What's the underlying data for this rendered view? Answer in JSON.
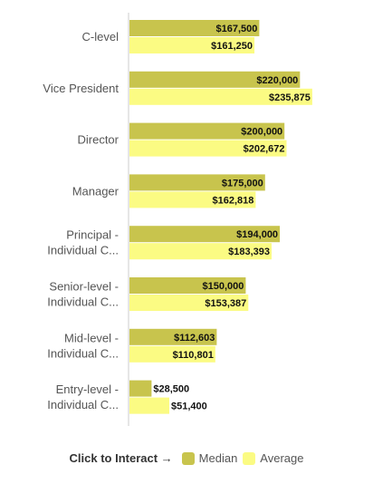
{
  "chart_data": {
    "type": "bar",
    "orientation": "horizontal",
    "title": "",
    "xlabel": "",
    "ylabel": "",
    "xlim": [
      0,
      250000
    ],
    "grid": false,
    "legend_placement": "bottom-center",
    "categories": [
      [
        "C-level"
      ],
      [
        "Vice President"
      ],
      [
        "Director"
      ],
      [
        "Manager"
      ],
      [
        "Principal -",
        "Individual C..."
      ],
      [
        "Senior-level -",
        "Individual C..."
      ],
      [
        "Mid-level -",
        "Individual C..."
      ],
      [
        "Entry-level -",
        "Individual C..."
      ]
    ],
    "series": [
      {
        "name": "Median",
        "color": "#c8c44d",
        "values": [
          167500,
          220000,
          200000,
          175000,
          194000,
          150000,
          112603,
          28500
        ],
        "labels": [
          "$167,500",
          "$220,000",
          "$200,000",
          "$175,000",
          "$194,000",
          "$150,000",
          "$112,603",
          "$28,500"
        ]
      },
      {
        "name": "Average",
        "color": "#fbfb83",
        "values": [
          161250,
          235875,
          202672,
          162818,
          183393,
          153387,
          110801,
          51400
        ],
        "labels": [
          "$161,250",
          "$235,875",
          "$202,672",
          "$162,818",
          "$183,393",
          "$153,387",
          "$110,801",
          "$51,400"
        ]
      }
    ]
  },
  "legend": {
    "cta": "Click to Interact →"
  },
  "colors": {
    "axis": "#cccccc",
    "median": "#c8c44d",
    "average": "#fbfb83"
  }
}
